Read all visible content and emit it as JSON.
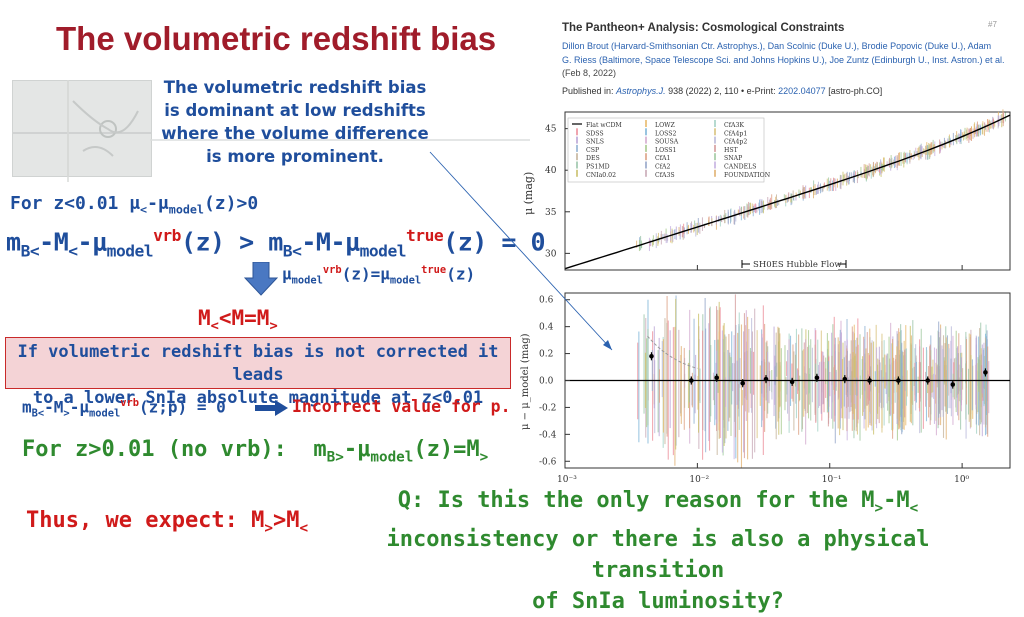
{
  "slide": {
    "title": "The volumetric redshift bias",
    "intro_lines": [
      "The volumetric redshift bias",
      "is dominant at low redshifts",
      "where the volume difference",
      "is more prominent."
    ],
    "line1": {
      "a": "For z<0.01 μ",
      "s1": "<",
      "b": "-μ",
      "s2": "model",
      "c": "(z)>0"
    },
    "line2": {
      "m1": "m",
      "s1": "B<",
      "t1": "-M",
      "s2": "<",
      "t2": "-μ",
      "s3": "model",
      "p1": "vrb",
      "t3": "(z) > m",
      "s4": "B<",
      "t4": "-M-μ",
      "s5": "model",
      "p2": "true",
      "t5": "(z) = 0"
    },
    "line3": {
      "a": "μ",
      "s1": "model",
      "p1": "vrb",
      "b": "(z)=μ",
      "s2": "model",
      "p2": "true",
      "c": "(z)"
    },
    "line4": {
      "a": "M",
      "s1": "<",
      "b": "<M=M",
      "s2": ">"
    },
    "callout_lines": [
      "If volumetric redshift bias is not corrected it leads",
      "to a lower SnIa absolute magnitude at z<0.01"
    ],
    "line5": {
      "a": "m",
      "s1": "B<",
      "b": "-M",
      "s2": ">",
      "c": "-μ",
      "s3": "model",
      "p1": "vrb",
      "d": "(z;p) = 0"
    },
    "line5_incorrect": "Incorrect value for p.",
    "line6": {
      "a": "For z>0.01 (no vrb):  m",
      "s1": "B>",
      "b": "-μ",
      "s2": "model",
      "c": "(z)=M",
      "s3": ">"
    },
    "line7": {
      "a": "Thus, we expect: M",
      "s1": ">",
      "b": ">M",
      "s2": "<"
    },
    "question": {
      "l1a": "Q: Is this the only reason for the M",
      "l1s1": ">",
      "l1b": "-M",
      "l1s2": "<",
      "l2": "inconsistency or there is also a physical transition",
      "l3": "of SnIa luminosity?"
    }
  },
  "paper": {
    "title": "The Pantheon+ Analysis: Cosmological Constraints",
    "corner_num": "#7",
    "authors_l1": "Dillon Brout (Harvard-Smithsonian Ctr. Astrophys.), Dan Scolnic (Duke U.), Brodie Popovic (Duke U.), Adam",
    "authors_l2": "G. Riess (Baltimore, Space Telescope Sci. and Johns Hopkins U.), Joe Zuntz (Edinburgh U., Inst. Astron.) et al.",
    "date": "(Feb 8, 2022)",
    "pub_prefix": "Published in: ",
    "pub_journal": "Astrophys.J.",
    "pub_mid": " 938 (2022) 2, 110 • e-Print: ",
    "pub_eprint": "2202.04077",
    "pub_suffix": " [astro-ph.CO]"
  },
  "chart_data": {
    "type": "scatter",
    "title": "",
    "xscale": "log",
    "xlim": [
      0.001,
      2.3
    ],
    "x_ticks": [
      "10⁻³",
      "10⁻²",
      "10⁻¹",
      "10⁰"
    ],
    "top_panel": {
      "ylabel": "μ (mag)",
      "ylim": [
        28,
        47
      ],
      "y_ticks": [
        30,
        35,
        40,
        45
      ],
      "annotation": "SH0ES Hubble Flow",
      "legend_placement": "top-left",
      "legend_entries": [
        "Flat wCDM",
        "SDSS",
        "SNLS",
        "CSP",
        "DES",
        "PS1MD",
        "CNIa0.02",
        "LOWZ",
        "LOSS2",
        "SOUSA",
        "LOSS1",
        "CfA1",
        "CfA2",
        "CfA3S",
        "CfA3K",
        "CfA4p1",
        "CfA4p2",
        "HST",
        "SNAP",
        "CANDELS",
        "FOUNDATION"
      ],
      "legend_colors": [
        "#000000",
        "#ec8e9a",
        "#b9a4d6",
        "#8fb0d2",
        "#c4b39a",
        "#9ac4a8",
        "#c9c06a",
        "#e7b96a",
        "#7fb5d8",
        "#d3aacf",
        "#a7c98d",
        "#dca083",
        "#94a5c8",
        "#c8a8b5",
        "#a3d1c4",
        "#d8c27c",
        "#b9b9d9",
        "#d49a9a",
        "#9fc89f",
        "#c5b0e0",
        "#e0b070"
      ]
    },
    "bottom_panel": {
      "ylabel": "μ − μ_model (mag)",
      "ylim": [
        -0.65,
        0.65
      ],
      "y_ticks": [
        -0.6,
        -0.4,
        -0.2,
        0.0,
        0.2,
        0.4,
        0.6
      ],
      "binned_points": [
        {
          "x": 0.0045,
          "y": 0.18
        },
        {
          "x": 0.009,
          "y": 0.0
        },
        {
          "x": 0.014,
          "y": 0.02
        },
        {
          "x": 0.022,
          "y": -0.02
        },
        {
          "x": 0.033,
          "y": 0.01
        },
        {
          "x": 0.052,
          "y": -0.01
        },
        {
          "x": 0.08,
          "y": 0.02
        },
        {
          "x": 0.13,
          "y": 0.01
        },
        {
          "x": 0.2,
          "y": 0.0
        },
        {
          "x": 0.33,
          "y": 0.0
        },
        {
          "x": 0.55,
          "y": 0.0
        },
        {
          "x": 0.85,
          "y": -0.03
        },
        {
          "x": 1.5,
          "y": 0.06
        }
      ]
    }
  }
}
